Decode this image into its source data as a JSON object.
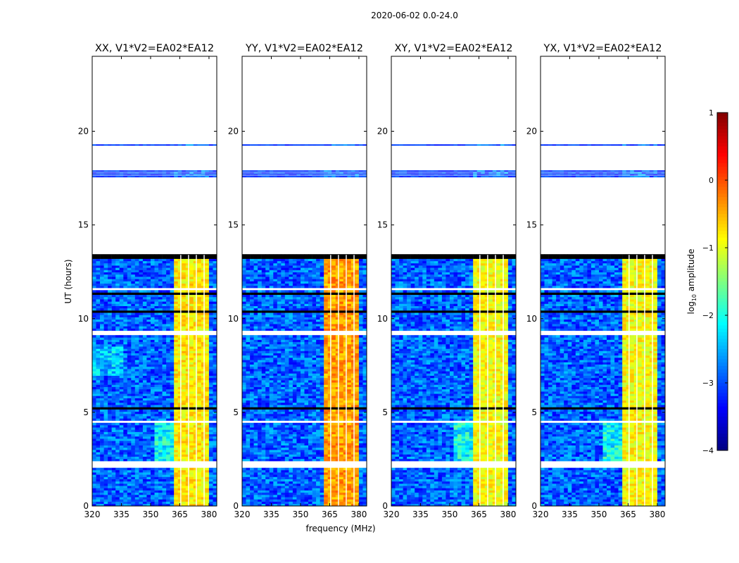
{
  "chart_data": {
    "type": "heatmap",
    "title": "2020-06-02 0.0-24.0",
    "xlabel": "frequency (MHz)",
    "ylabel": "UT (hours)",
    "xlim": [
      320,
      384
    ],
    "ylim": [
      0,
      24
    ],
    "xticks": [
      320,
      335,
      350,
      365,
      380
    ],
    "yticks": [
      0,
      5,
      10,
      15,
      20
    ],
    "panels": [
      {
        "title": "XX, V1*V2=EA02*EA12",
        "rfi_level": -0.8
      },
      {
        "title": "YY, V1*V2=EA02*EA12",
        "rfi_level": -0.4
      },
      {
        "title": "XY, V1*V2=EA02*EA12",
        "rfi_level": -0.9
      },
      {
        "title": "YX, V1*V2=EA02*EA12",
        "rfi_level": -0.9
      }
    ],
    "background_level": -2.9,
    "rfi_band_mhz": [
      362,
      380
    ],
    "flagged_channels_mhz": [
      365.5,
      369.5,
      373.5,
      377.5
    ],
    "data_time_ranges": [
      [
        0,
        13.4
      ],
      [
        17.55,
        17.95
      ],
      [
        19.22,
        19.32
      ]
    ],
    "blank_time_ranges": [
      [
        2.1,
        2.4
      ],
      [
        3.55,
        3.62
      ],
      [
        4.45,
        4.55
      ],
      [
        9.1,
        9.4
      ],
      [
        11.55,
        11.6
      ]
    ],
    "zero_time_ranges": [
      [
        5.2,
        5.3
      ],
      [
        6.1,
        6.15
      ],
      [
        10.35,
        10.42
      ],
      [
        11.0,
        11.05
      ],
      [
        11.3,
        11.35
      ],
      [
        13.2,
        13.4
      ]
    ],
    "colorbar": {
      "label": "log10 amplitude",
      "label_main": "log",
      "label_sub": "10",
      "label_rest": " amplitude",
      "range": [
        -4,
        1
      ],
      "ticks": [
        "1",
        "0",
        "−1",
        "−2",
        "−3",
        "−4"
      ],
      "tick_values": [
        1,
        0,
        -1,
        -2,
        -3,
        -4
      ],
      "colormap": "jet"
    }
  }
}
